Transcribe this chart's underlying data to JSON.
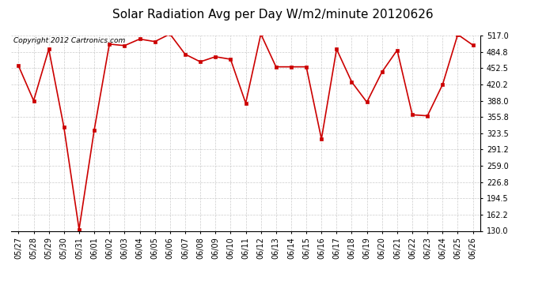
{
  "title": "Solar Radiation Avg per Day W/m2/minute 20120626",
  "copyright": "Copyright 2012 Cartronics.com",
  "labels": [
    "05/27",
    "05/28",
    "05/29",
    "05/30",
    "05/31",
    "06/01",
    "06/02",
    "06/03",
    "06/04",
    "06/05",
    "06/06",
    "06/07",
    "06/08",
    "06/09",
    "06/10",
    "06/11",
    "06/12",
    "06/13",
    "06/14",
    "06/15",
    "06/16",
    "06/17",
    "06/18",
    "06/19",
    "06/20",
    "06/21",
    "06/22",
    "06/23",
    "06/24",
    "06/25",
    "06/26"
  ],
  "values": [
    457,
    388,
    490,
    335,
    133,
    330,
    500,
    497,
    510,
    505,
    520,
    480,
    465,
    475,
    470,
    383,
    520,
    455,
    455,
    455,
    312,
    490,
    425,
    385,
    445,
    488,
    360,
    358,
    420,
    519,
    498
  ],
  "y_ticks": [
    130.0,
    162.2,
    194.5,
    226.8,
    259.0,
    291.2,
    323.5,
    355.8,
    388.0,
    420.2,
    452.5,
    484.8,
    517.0
  ],
  "ylim": [
    130.0,
    517.0
  ],
  "line_color": "#cc0000",
  "marker_color": "#cc0000",
  "bg_color": "#ffffff",
  "plot_bg_color": "#ffffff",
  "grid_color": "#c0c0c0",
  "title_fontsize": 11,
  "tick_fontsize": 7,
  "copyright_fontsize": 6.5
}
